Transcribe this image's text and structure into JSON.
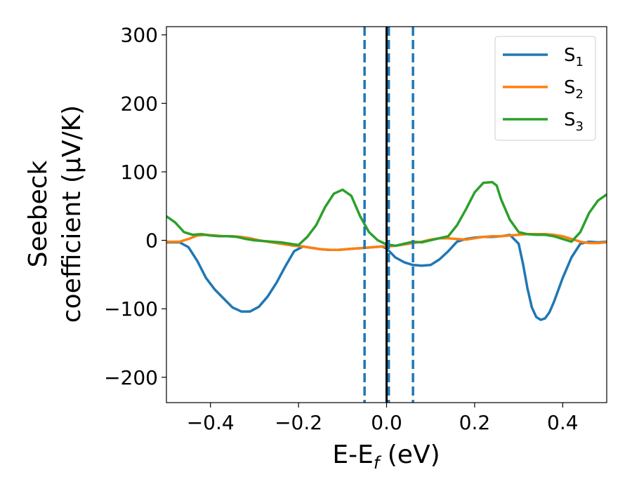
{
  "chart_data": {
    "type": "line",
    "xlabel": {
      "main": "E-E",
      "sub": "f",
      "suffix": " (eV)"
    },
    "ylabel": {
      "line1": "Seebeck",
      "line2": "coefficient  (μV/K)"
    },
    "xlim": [
      -0.5,
      0.5
    ],
    "ylim": [
      -237,
      312
    ],
    "xticks": [
      -0.4,
      -0.2,
      0.0,
      0.2,
      0.4
    ],
    "xtick_labels": [
      "−0.4",
      "−0.2",
      "0.0",
      "0.2",
      "0.4"
    ],
    "yticks": [
      -200,
      -100,
      0,
      100,
      200,
      300
    ],
    "ytick_labels": [
      "−200",
      "−100",
      "0",
      "100",
      "200",
      "300"
    ],
    "grid": false,
    "legend": {
      "position": "top-right"
    },
    "vlines": [
      {
        "x": 0.0,
        "color": "#000000",
        "style": "solid"
      },
      {
        "x": -0.05,
        "color": "#1f77b4",
        "style": "dashed"
      },
      {
        "x": 0.005,
        "color": "#1f77b4",
        "style": "dashed"
      },
      {
        "x": 0.06,
        "color": "#1f77b4",
        "style": "dashed"
      }
    ],
    "series": [
      {
        "name": "S",
        "sub": "1",
        "color": "#1f77b4",
        "x": [
          -0.5,
          -0.47,
          -0.45,
          -0.43,
          -0.41,
          -0.39,
          -0.37,
          -0.35,
          -0.33,
          -0.31,
          -0.29,
          -0.27,
          -0.25,
          -0.23,
          -0.21,
          -0.19,
          -0.17,
          -0.15,
          -0.13,
          -0.11,
          -0.09,
          -0.07,
          -0.05,
          -0.03,
          -0.01,
          0.0,
          0.02,
          0.04,
          0.06,
          0.08,
          0.1,
          0.12,
          0.14,
          0.16,
          0.18,
          0.2,
          0.22,
          0.24,
          0.26,
          0.28,
          0.3,
          0.31,
          0.32,
          0.33,
          0.34,
          0.35,
          0.36,
          0.37,
          0.38,
          0.4,
          0.42,
          0.44,
          0.46,
          0.48,
          0.5
        ],
        "y": [
          -3,
          -3,
          -10,
          -30,
          -55,
          -72,
          -85,
          -98,
          -104,
          -104,
          -97,
          -82,
          -62,
          -38,
          -16,
          -9,
          -11,
          -13,
          -14,
          -14,
          -13,
          -12,
          -11,
          -10,
          -9,
          -12,
          -25,
          -32,
          -36,
          -37,
          -36,
          -28,
          -16,
          -2,
          2,
          4,
          5,
          5,
          6,
          8,
          -5,
          -35,
          -70,
          -98,
          -112,
          -116,
          -114,
          -105,
          -90,
          -55,
          -25,
          -5,
          -2,
          -3,
          -2
        ]
      },
      {
        "name": "S",
        "sub": "2",
        "color": "#ff7f0e",
        "x": [
          -0.5,
          -0.47,
          -0.45,
          -0.43,
          -0.41,
          -0.39,
          -0.37,
          -0.35,
          -0.33,
          -0.31,
          -0.29,
          -0.27,
          -0.25,
          -0.23,
          -0.21,
          -0.19,
          -0.17,
          -0.15,
          -0.13,
          -0.11,
          -0.09,
          -0.07,
          -0.05,
          -0.03,
          -0.01,
          0.0,
          0.02,
          0.04,
          0.06,
          0.08,
          0.1,
          0.12,
          0.14,
          0.16,
          0.18,
          0.2,
          0.22,
          0.24,
          0.26,
          0.28,
          0.3,
          0.32,
          0.34,
          0.36,
          0.38,
          0.4,
          0.42,
          0.44,
          0.46,
          0.48,
          0.5
        ],
        "y": [
          -2,
          -2,
          2,
          7,
          8,
          7,
          6,
          6,
          5,
          3,
          0,
          -2,
          -4,
          -6,
          -8,
          -9,
          -11,
          -13,
          -14,
          -14,
          -13,
          -12,
          -11,
          -10,
          -9,
          -9,
          -8,
          -6,
          -4,
          -2,
          1,
          3,
          3,
          2,
          1,
          3,
          5,
          6,
          6,
          7,
          8,
          9,
          9,
          9,
          8,
          6,
          2,
          -2,
          -4,
          -4,
          -3
        ]
      },
      {
        "name": "S",
        "sub": "3",
        "color": "#2ca02c",
        "x": [
          -0.5,
          -0.48,
          -0.46,
          -0.44,
          -0.42,
          -0.4,
          -0.38,
          -0.36,
          -0.34,
          -0.32,
          -0.3,
          -0.28,
          -0.26,
          -0.24,
          -0.22,
          -0.2,
          -0.18,
          -0.16,
          -0.14,
          -0.12,
          -0.1,
          -0.08,
          -0.06,
          -0.04,
          -0.02,
          0.0,
          0.02,
          0.04,
          0.06,
          0.08,
          0.1,
          0.12,
          0.14,
          0.16,
          0.18,
          0.2,
          0.22,
          0.24,
          0.25,
          0.26,
          0.28,
          0.3,
          0.32,
          0.34,
          0.36,
          0.38,
          0.4,
          0.42,
          0.44,
          0.46,
          0.48,
          0.5
        ],
        "y": [
          35,
          26,
          12,
          8,
          9,
          7,
          6,
          6,
          5,
          2,
          0,
          -1,
          -2,
          -3,
          -5,
          -7,
          5,
          22,
          48,
          68,
          74,
          65,
          35,
          12,
          0,
          -6,
          -8,
          -5,
          -2,
          -3,
          0,
          3,
          6,
          22,
          45,
          70,
          84,
          85,
          80,
          60,
          30,
          12,
          9,
          8,
          8,
          6,
          2,
          -2,
          12,
          40,
          58,
          67
        ]
      }
    ]
  }
}
